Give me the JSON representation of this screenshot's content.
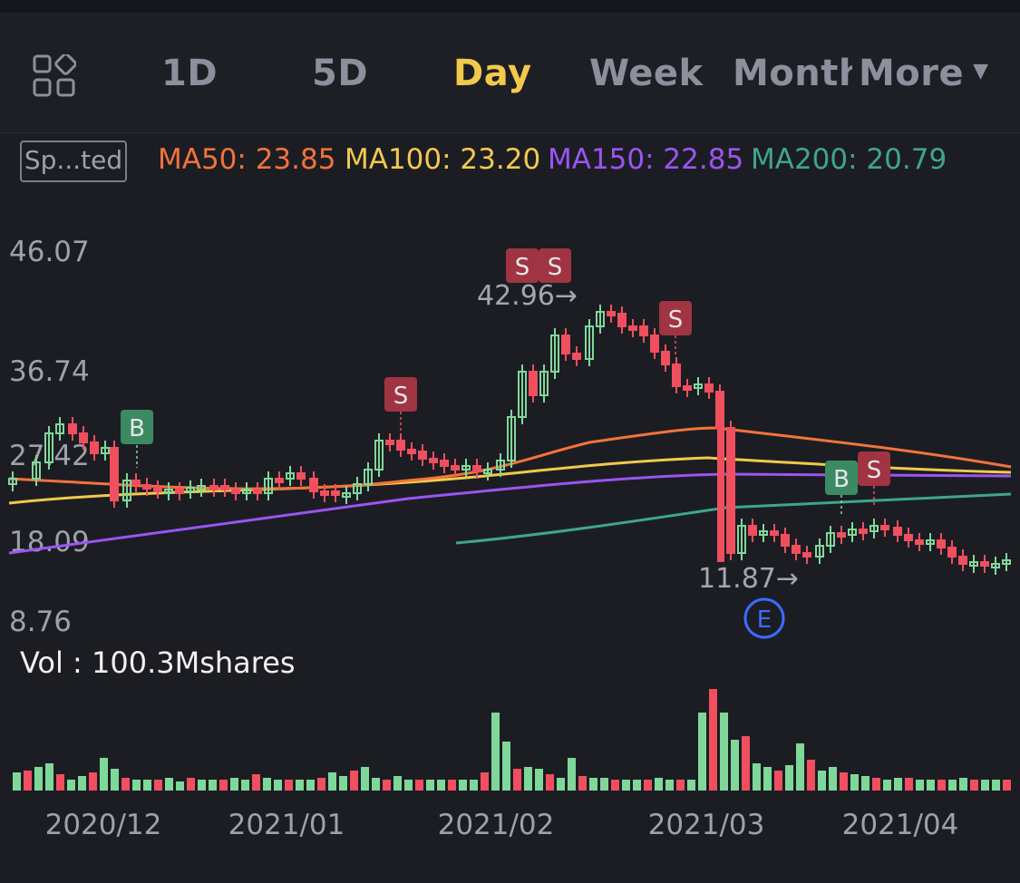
{
  "tabs": {
    "items": [
      {
        "label": "1D",
        "active": false
      },
      {
        "label": "5D",
        "active": false
      },
      {
        "label": "Day",
        "active": true
      },
      {
        "label": "Week",
        "active": false
      },
      {
        "label": "Month",
        "active": false
      }
    ],
    "more_label": "More",
    "grid_icon": "grid-icon"
  },
  "indicator": {
    "short_label": "Sp...ted",
    "ma": [
      {
        "label": "MA50: 23.85",
        "color": "#f2733a"
      },
      {
        "label": "MA100: 23.20",
        "color": "#f2c94c"
      },
      {
        "label": "MA150: 22.85",
        "color": "#9b55f0"
      },
      {
        "label": "MA200: 20.79",
        "color": "#3fa58f"
      }
    ]
  },
  "price_axis": {
    "ticks": [
      "46.07",
      "36.74",
      "27.42",
      "18.09",
      "8.76"
    ]
  },
  "date_axis": {
    "ticks": [
      "2020/12",
      "2021/01",
      "2021/02",
      "2021/03",
      "2021/04"
    ]
  },
  "volume": {
    "label": "Vol  : 100.3Mshares"
  },
  "annotations": {
    "high": "42.96→",
    "low": "11.87→",
    "earnings_badge": "E",
    "buy": "B",
    "sell": "S"
  },
  "colors": {
    "up": "#7fd89a",
    "down": "#ef4f5e",
    "background": "#1c1d23"
  },
  "chart_data": {
    "type": "candlestick",
    "price_range": [
      8.76,
      46.07
    ],
    "ma_lines": [
      {
        "name": "MA50",
        "value": 23.85,
        "color": "#f2733a"
      },
      {
        "name": "MA100",
        "value": 23.2,
        "color": "#f2c94c"
      },
      {
        "name": "MA150",
        "value": 22.85,
        "color": "#9b55f0"
      },
      {
        "name": "MA200",
        "value": 20.79,
        "color": "#3fa58f"
      }
    ],
    "price_labels": {
      "high": 42.96,
      "low": 11.87
    },
    "volume_unit": "Mshares"
  }
}
